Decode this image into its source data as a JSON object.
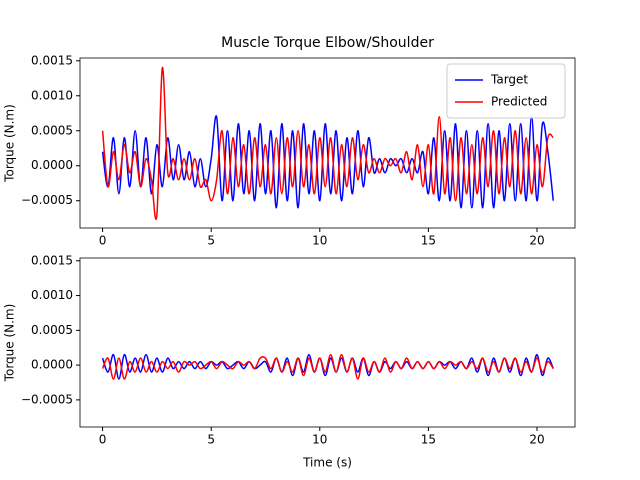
{
  "chart_data": [
    {
      "type": "line",
      "title": "Muscle Torque Elbow/Shoulder",
      "ylabel": "Torque (N.m)",
      "x": [
        0,
        0.25,
        0.5,
        0.75,
        1,
        1.25,
        1.5,
        1.75,
        2,
        2.25,
        2.5,
        2.75,
        3,
        3.25,
        3.5,
        3.75,
        4,
        4.25,
        4.5,
        4.75,
        5,
        5.25,
        5.5,
        5.75,
        6,
        6.25,
        6.5,
        6.75,
        7,
        7.25,
        7.5,
        7.75,
        8,
        8.25,
        8.5,
        8.75,
        9,
        9.25,
        9.5,
        9.75,
        10,
        10.25,
        10.5,
        10.75,
        11,
        11.25,
        11.5,
        11.75,
        12,
        12.25,
        12.5,
        12.75,
        13,
        13.25,
        13.5,
        13.75,
        14,
        14.25,
        14.5,
        14.75,
        15,
        15.25,
        15.5,
        15.75,
        16,
        16.25,
        16.5,
        16.75,
        17,
        17.25,
        17.5,
        17.75,
        18,
        18.25,
        18.5,
        18.75,
        19,
        19.25,
        19.5,
        19.75,
        20,
        20.25,
        20.5,
        20.75
      ],
      "series": [
        {
          "name": "Target",
          "color": "#0000ff",
          "values": [
            0.0002,
            -0.0003,
            0.0004,
            -0.0004,
            0.0004,
            -0.0003,
            0.0005,
            -0.0003,
            0.0004,
            -0.0004,
            0.0003,
            -0.0003,
            0.0004,
            -0.0002,
            0.0003,
            -0.0002,
            0.0002,
            -0.0003,
            0.0001,
            -0.0003,
            0.0001,
            0.0007,
            -0.0005,
            0.0005,
            -0.0005,
            0.0006,
            -0.0004,
            0.0005,
            -0.0005,
            0.0006,
            -0.0004,
            0.0005,
            -0.0006,
            0.0006,
            -0.0005,
            0.0005,
            -0.0006,
            0.0006,
            -0.0004,
            0.0005,
            -0.0005,
            0.0006,
            -0.0004,
            0.0005,
            -0.0005,
            0.0004,
            -0.0004,
            0.0005,
            -0.0003,
            0.0004,
            -0.0001,
            0.0001,
            -0.0001,
            0.0001,
            0.0,
            0.0001,
            -0.0001,
            0.0001,
            -0.0001,
            0.0002,
            -0.0004,
            0.0004,
            -0.0005,
            0.0005,
            -0.0005,
            0.0006,
            -0.0006,
            0.0005,
            -0.0006,
            0.0005,
            -0.0006,
            0.0006,
            -0.0006,
            0.0005,
            -0.0005,
            0.0006,
            -0.0005,
            0.0006,
            -0.0005,
            0.0007,
            -0.0005,
            0.0006,
            0.0002,
            -0.0005
          ]
        },
        {
          "name": "Predicted",
          "color": "#ff0000",
          "values": [
            0.0005,
            -0.0003,
            0.0002,
            -0.0002,
            0.0003,
            -0.0001,
            0.0002,
            -0.0003,
            0.0001,
            -0.0002,
            -0.0007,
            0.0014,
            -0.0001,
            0.0001,
            -0.0002,
            0.0001,
            -0.0002,
            0.0001,
            -0.0003,
            -0.0002,
            -0.0005,
            -0.0002,
            0.0005,
            -0.0004,
            0.0004,
            -0.0003,
            0.0003,
            -0.0004,
            0.0004,
            -0.0003,
            0.0003,
            -0.0004,
            0.0004,
            -0.0004,
            0.0004,
            -0.0003,
            0.0005,
            -0.0003,
            0.0003,
            -0.0004,
            0.0004,
            -0.0003,
            0.0004,
            -0.0004,
            0.0003,
            -0.0003,
            0.0004,
            -0.0002,
            0.0003,
            -0.0001,
            0.0001,
            -0.0001,
            0.0001,
            0.0,
            0.0001,
            -0.0001,
            0.0002,
            -0.0002,
            0.0003,
            -0.0003,
            0.0003,
            -0.0004,
            0.0007,
            -0.0004,
            0.0004,
            -0.0005,
            0.0004,
            -0.0004,
            0.0003,
            -0.0004,
            0.0004,
            -0.0003,
            0.0005,
            -0.0004,
            0.0004,
            -0.0003,
            0.0005,
            -0.0004,
            0.0004,
            -0.0004,
            0.0003,
            -0.0003,
            0.0004,
            0.0004
          ]
        }
      ],
      "xlim": [
        -1.04,
        21.75
      ],
      "ylim": [
        -0.00089,
        0.00154
      ],
      "xticks": [
        0,
        5,
        10,
        15,
        20
      ],
      "yticks": [
        {
          "value": -0.0005,
          "label": "−0.0005"
        },
        {
          "value": 0,
          "label": "0.0000"
        },
        {
          "value": 0.0005,
          "label": "0.0005"
        },
        {
          "value": 0.001,
          "label": "0.0010"
        },
        {
          "value": 0.0015,
          "label": "0.0015"
        }
      ],
      "legend": "upper right"
    },
    {
      "type": "line",
      "ylabel": "Torque (N.m)",
      "xlabel": "Time (s)",
      "x": [
        0,
        0.25,
        0.5,
        0.75,
        1,
        1.25,
        1.5,
        1.75,
        2,
        2.25,
        2.5,
        2.75,
        3,
        3.25,
        3.5,
        3.75,
        4,
        4.25,
        4.5,
        4.75,
        5,
        5.25,
        5.5,
        5.75,
        6,
        6.25,
        6.5,
        6.75,
        7,
        7.25,
        7.5,
        7.75,
        8,
        8.25,
        8.5,
        8.75,
        9,
        9.25,
        9.5,
        9.75,
        10,
        10.25,
        10.5,
        10.75,
        11,
        11.25,
        11.5,
        11.75,
        12,
        12.25,
        12.5,
        12.75,
        13,
        13.25,
        13.5,
        13.75,
        14,
        14.25,
        14.5,
        14.75,
        15,
        15.25,
        15.5,
        15.75,
        16,
        16.25,
        16.5,
        16.75,
        17,
        17.25,
        17.5,
        17.75,
        18,
        18.25,
        18.5,
        18.75,
        19,
        19.25,
        19.5,
        19.75,
        20,
        20.25,
        20.5,
        20.75
      ],
      "series": [
        {
          "color": "#0000ff",
          "values": [
            0.0001,
            -0.0001,
            0.00015,
            -0.0002,
            0.00015,
            -0.0001,
            0.0001,
            -0.0001,
            0.00015,
            -0.0001,
            0.0001,
            -0.0001,
            0.0001,
            -5e-05,
            5e-05,
            -5e-05,
            5e-05,
            -5e-05,
            5e-05,
            -5e-05,
            5e-05,
            0,
            5e-05,
            -5e-05,
            0,
            5e-05,
            -5e-05,
            5e-05,
            -5e-05,
            0,
            5e-05,
            -0.0001,
            0.0001,
            -0.0001,
            0.0001,
            -0.00015,
            0.0001,
            -0.0001,
            0.00015,
            -0.0001,
            0.0001,
            -0.00015,
            0.0001,
            -0.0001,
            0.0001,
            -0.0001,
            0.0001,
            -0.0001,
            0.0001,
            -0.00015,
            5e-05,
            -0.0001,
            5e-05,
            -5e-05,
            5e-05,
            -5e-05,
            5e-05,
            -5e-05,
            5e-05,
            -5e-05,
            5e-05,
            -5e-05,
            5e-05,
            0,
            5e-05,
            -5e-05,
            5e-05,
            -5e-05,
            0.0001,
            -0.0001,
            0.0001,
            -0.00015,
            0.0001,
            -0.0001,
            0.0001,
            -0.0001,
            0.0001,
            -0.00015,
            0.0001,
            -0.0001,
            0.00015,
            -0.00015,
            0.0001,
            -5e-05
          ]
        },
        {
          "color": "#ff0000",
          "values": [
            -5e-05,
            0.0001,
            -0.0002,
            0.0001,
            -0.0002,
            5e-05,
            -0.0001,
            0.0001,
            -0.0001,
            5e-05,
            -0.0001,
            5e-05,
            -5e-05,
            5e-05,
            -0.0001,
            5e-05,
            0,
            5e-05,
            -5e-05,
            0,
            5e-05,
            -5e-05,
            5e-05,
            0,
            -5e-05,
            5e-05,
            0,
            5e-05,
            -5e-05,
            0.0001,
            0.0001,
            -5e-05,
            0.0001,
            -0.0001,
            5e-05,
            -0.0001,
            0.0001,
            -0.00015,
            0.0001,
            -0.0001,
            0.0001,
            -0.0001,
            0.00015,
            -0.0001,
            0.00015,
            -0.0001,
            0.0001,
            -0.0002,
            0.0001,
            -0.0001,
            5e-05,
            -0.0001,
            0.0001,
            -0.0001,
            5e-05,
            -5e-05,
            0.0001,
            -5e-05,
            5e-05,
            -5e-05,
            5e-05,
            -5e-05,
            5e-05,
            -5e-05,
            5e-05,
            0,
            5e-05,
            -5e-05,
            5e-05,
            -5e-05,
            0.0001,
            -0.0001,
            5e-05,
            -0.0001,
            0.0001,
            -5e-05,
            0.0001,
            -0.0001,
            5e-05,
            -0.0001,
            0.0001,
            -0.0001,
            5e-05,
            -5e-05
          ]
        }
      ],
      "xlim": [
        -1.04,
        21.75
      ],
      "ylim": [
        -0.00089,
        0.00154
      ],
      "xticks": [
        0,
        5,
        10,
        15,
        20
      ],
      "yticks": [
        {
          "value": -0.0005,
          "label": "−0.0005"
        },
        {
          "value": 0,
          "label": "0.0000"
        },
        {
          "value": 0.0005,
          "label": "0.0005"
        },
        {
          "value": 0.001,
          "label": "0.0010"
        },
        {
          "value": 0.0015,
          "label": "0.0015"
        }
      ]
    }
  ]
}
